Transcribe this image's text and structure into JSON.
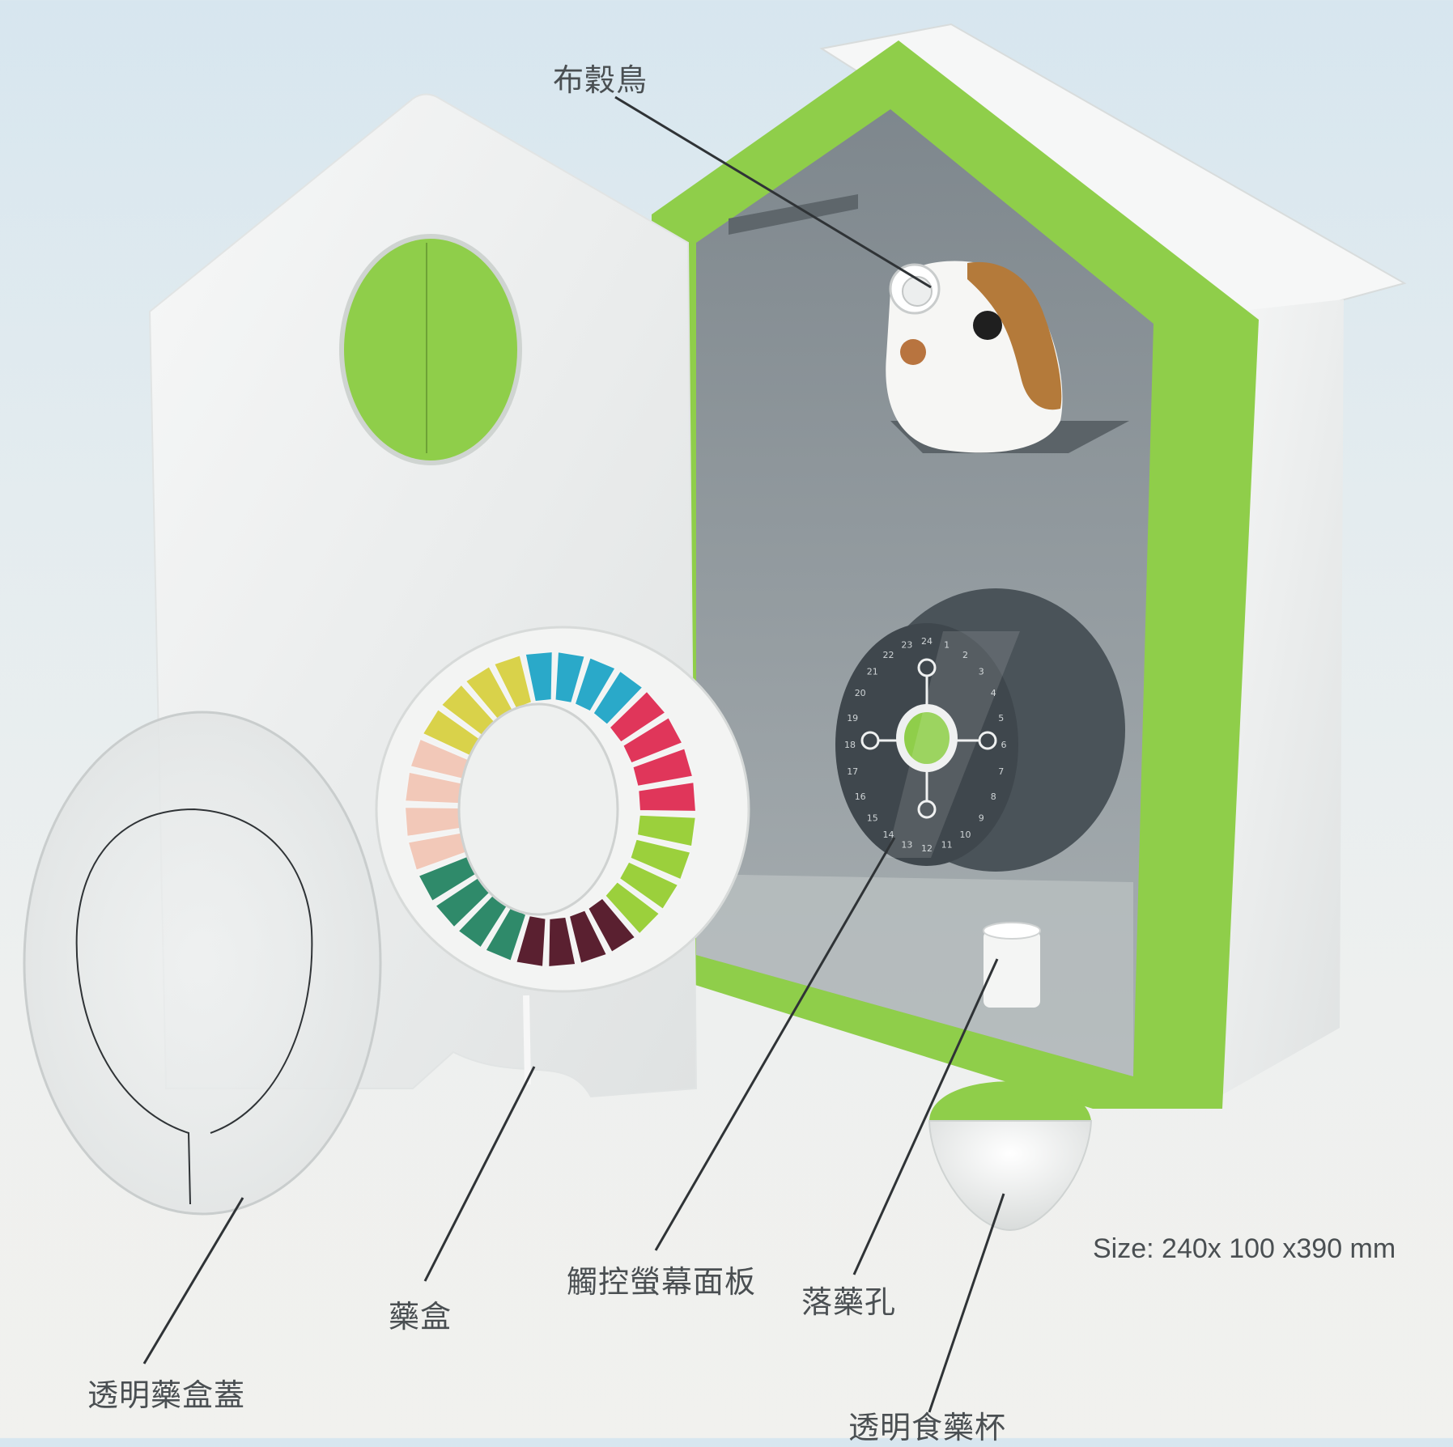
{
  "labels": {
    "cuckoo_bird": "布穀鳥",
    "pill_box": "藥盒",
    "touch_panel": "觸控螢幕面板",
    "drop_hole": "落藥孔",
    "lid": "透明藥盒蓋",
    "cup": "透明食藥杯"
  },
  "size_text": "Size: 240x 100 x390 mm",
  "dial_hours": [
    "24",
    "1",
    "2",
    "3",
    "4",
    "5",
    "6",
    "7",
    "8",
    "9",
    "10",
    "11",
    "12",
    "13",
    "14",
    "15",
    "16",
    "17",
    "18",
    "19",
    "20",
    "21",
    "22",
    "23"
  ],
  "colors": {
    "green": "#8fce4a",
    "white": "#f4f5f4",
    "panel_grey": "#8f979c",
    "dark_dial": "#3f474d",
    "leader": "#2f3336"
  },
  "pill_segment_colors": [
    "#2aa9c9",
    "#e0365a",
    "#9bd03c",
    "#5a2030",
    "#2f8a6a",
    "#f2c8b8",
    "#d9d24a"
  ]
}
